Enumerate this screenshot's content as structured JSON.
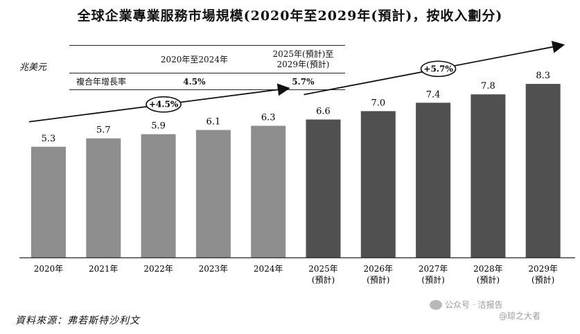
{
  "title": "全球企業專業服務市場規模(2020年至2029年(預計)，按收入劃分)",
  "unit_label": "兆美元",
  "cagr_table": {
    "header_period1": "2020年至2024年",
    "header_period2_line1": "2025年(預計)至",
    "header_period2_line2": "2029年(預計)",
    "row_label": "複合年增長率",
    "value1": "4.5%",
    "value2": "5.7%"
  },
  "source": "資料來源：弗若斯特沙利文",
  "watermark": {
    "line1": "公众号 · 洁报告",
    "line2": "@琼之大者"
  },
  "colors": {
    "historical_bar": "#8e8e8e",
    "forecast_bar": "#505050"
  },
  "chart_data": {
    "type": "bar",
    "title": "全球企業專業服務市場規模(2020年至2029年(預計)，按收入劃分)",
    "ylabel": "兆美元",
    "ylim": [
      0,
      8.6
    ],
    "categories": [
      "2020年",
      "2021年",
      "2022年",
      "2023年",
      "2024年",
      "2025年",
      "2026年",
      "2027年",
      "2028年",
      "2029年"
    ],
    "category_sublabels": [
      "",
      "",
      "",
      "",
      "",
      "(預計)",
      "(預計)",
      "(預計)",
      "(預計)",
      "(預計)"
    ],
    "values": [
      5.3,
      5.7,
      5.9,
      6.1,
      6.3,
      6.6,
      7.0,
      7.4,
      7.8,
      8.3
    ],
    "value_labels": [
      "5.3",
      "5.7",
      "5.9",
      "6.1",
      "6.3",
      "6.6",
      "7.0",
      "7.4",
      "7.8",
      "8.3"
    ],
    "annotations": [
      {
        "text": "+4.5%",
        "from": "2020年",
        "to": "2024年"
      },
      {
        "text": "+5.7%",
        "from": "2025年",
        "to": "2029年"
      }
    ]
  }
}
